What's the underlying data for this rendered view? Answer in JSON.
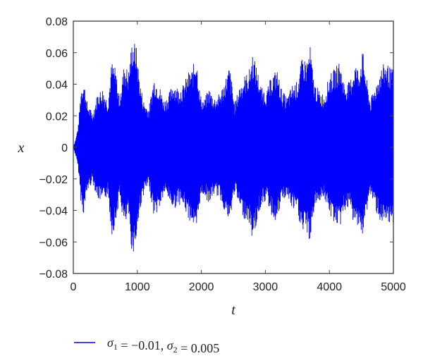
{
  "chart_data": {
    "type": "line",
    "xlabel": "t",
    "ylabel": "x",
    "xlim": [
      0,
      5000
    ],
    "ylim": [
      -0.08,
      0.08
    ],
    "x_ticks": [
      0,
      1000,
      2000,
      3000,
      4000,
      5000
    ],
    "y_ticks": [
      -0.08,
      -0.06,
      -0.04,
      -0.02,
      0,
      0.02,
      0.04,
      0.06,
      0.08
    ],
    "x_tick_labels": [
      "0",
      "1000",
      "2000",
      "3000",
      "4000",
      "5000"
    ],
    "y_tick_labels": [
      "−0.08",
      "−0.06",
      "−0.04",
      "−0.02",
      "0",
      "0.02",
      "0.04",
      "0.06",
      "0.08"
    ],
    "grid": false,
    "legend_position": "bottom",
    "series": [
      {
        "name": "σ1 = −0.01, σ2 = 0.005",
        "color": "#0000ff",
        "style": "dense-oscillation",
        "envelope": {
          "t": [
            0,
            40,
            80,
            120,
            160,
            220,
            300,
            380,
            460,
            540,
            600,
            660,
            720,
            800,
            860,
            920,
            980,
            1040,
            1100,
            1180,
            1260,
            1340,
            1420,
            1500,
            1560,
            1640,
            1720,
            1800,
            1860,
            1920,
            1980,
            2040,
            2120,
            2200,
            2280,
            2360,
            2440,
            2520,
            2600,
            2680,
            2740,
            2800,
            2860,
            2940,
            3020,
            3100,
            3180,
            3260,
            3340,
            3420,
            3500,
            3580,
            3640,
            3700,
            3760,
            3840,
            3920,
            4000,
            4080,
            4160,
            4240,
            4320,
            4400,
            4460,
            4520,
            4580,
            4640,
            4720,
            4800,
            4880,
            4960,
            5000
          ],
          "upper": [
            0.0,
            0.006,
            0.015,
            0.038,
            0.044,
            0.028,
            0.022,
            0.035,
            0.038,
            0.03,
            0.055,
            0.05,
            0.032,
            0.055,
            0.048,
            0.069,
            0.066,
            0.042,
            0.03,
            0.025,
            0.045,
            0.04,
            0.03,
            0.035,
            0.042,
            0.038,
            0.04,
            0.048,
            0.05,
            0.06,
            0.034,
            0.03,
            0.038,
            0.032,
            0.034,
            0.042,
            0.052,
            0.028,
            0.04,
            0.046,
            0.048,
            0.06,
            0.052,
            0.038,
            0.036,
            0.046,
            0.05,
            0.036,
            0.032,
            0.04,
            0.042,
            0.058,
            0.055,
            0.064,
            0.042,
            0.036,
            0.034,
            0.046,
            0.05,
            0.055,
            0.04,
            0.042,
            0.054,
            0.05,
            0.062,
            0.044,
            0.03,
            0.04,
            0.05,
            0.055,
            0.05,
            0.05
          ],
          "lower": [
            0.0,
            -0.006,
            -0.015,
            -0.035,
            -0.043,
            -0.028,
            -0.022,
            -0.033,
            -0.036,
            -0.03,
            -0.056,
            -0.05,
            -0.032,
            -0.052,
            -0.045,
            -0.069,
            -0.062,
            -0.04,
            -0.03,
            -0.025,
            -0.044,
            -0.04,
            -0.03,
            -0.034,
            -0.04,
            -0.036,
            -0.038,
            -0.046,
            -0.048,
            -0.058,
            -0.034,
            -0.03,
            -0.036,
            -0.03,
            -0.032,
            -0.04,
            -0.05,
            -0.028,
            -0.04,
            -0.046,
            -0.048,
            -0.059,
            -0.05,
            -0.036,
            -0.034,
            -0.044,
            -0.048,
            -0.034,
            -0.032,
            -0.04,
            -0.042,
            -0.056,
            -0.053,
            -0.062,
            -0.04,
            -0.034,
            -0.032,
            -0.044,
            -0.048,
            -0.052,
            -0.04,
            -0.04,
            -0.052,
            -0.048,
            -0.06,
            -0.042,
            -0.03,
            -0.04,
            -0.048,
            -0.052,
            -0.05,
            -0.048
          ]
        }
      }
    ]
  }
}
